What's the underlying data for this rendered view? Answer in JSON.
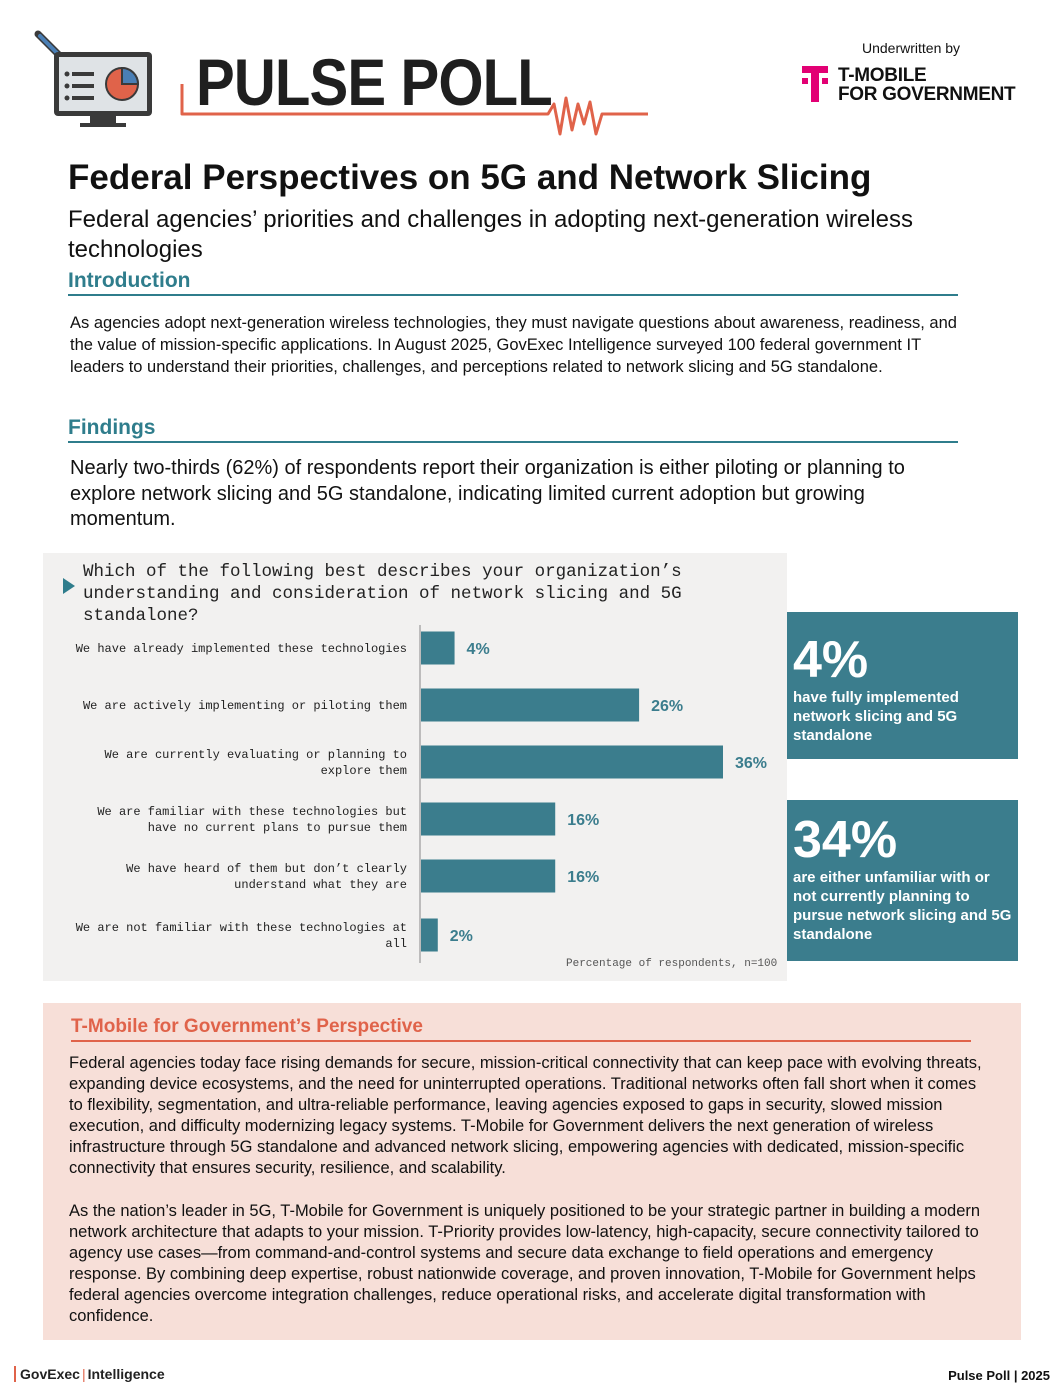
{
  "header": {
    "title": "PULSE POLL",
    "underwritten_label": "Underwritten by",
    "sponsor_line1": "T-MOBILE",
    "sponsor_line2": "FOR GOVERNMENT"
  },
  "main_title": "Federal Perspectives on 5G and Network Slicing",
  "subtitle": "Federal agencies’ priorities and challenges in adopting next-generation wireless technologies",
  "introduction": {
    "heading": "Introduction",
    "text": "As agencies adopt next-generation wireless technologies, they must navigate questions about awareness, readiness, and the value of mission-specific applications. In August 2025, GovExec Intelligence surveyed 100 federal government IT leaders to understand their priorities, challenges, and perceptions related to network slicing and 5G standalone."
  },
  "findings": {
    "heading": "Findings",
    "text": "Nearly two-thirds (62%) of respondents report their organization is either piloting or planning to explore network slicing and 5G standalone, indicating limited current adoption but growing momentum."
  },
  "chart_data": {
    "type": "bar",
    "orientation": "horizontal",
    "title": "Which of the following best describes your organization’s understanding and consideration of network slicing and 5G standalone?",
    "categories": [
      [
        "We have already implemented these technologies"
      ],
      [
        "We are actively implementing or piloting them"
      ],
      [
        "We are currently evaluating or planning to",
        "explore them"
      ],
      [
        "We are familiar with these technologies but",
        "have no current plans to pursue them"
      ],
      [
        "We have heard of them but don’t clearly",
        "understand what they are"
      ],
      [
        "We are not familiar with these technologies at",
        "all"
      ]
    ],
    "values": [
      4,
      26,
      36,
      16,
      16,
      2
    ],
    "value_labels": [
      "4%",
      "26%",
      "36%",
      "16%",
      "16%",
      "2%"
    ],
    "note": "Percentage of respondents, n=100",
    "bar_color": "#3b7d8d",
    "xlim": [
      0,
      36
    ],
    "grid": false,
    "legend": "none"
  },
  "stats": [
    {
      "number": "4%",
      "description": "have fully implemented network slicing and 5G standalone"
    },
    {
      "number": "34%",
      "description": "are either unfamiliar with or not currently planning to pursue network slicing and 5G standalone"
    }
  ],
  "perspective": {
    "heading": "T-Mobile for Government’s Perspective",
    "paragraph1": "Federal agencies today face rising demands for secure, mission-critical connectivity that can keep pace with evolving threats, expanding device ecosystems, and the need for uninterrupted operations. Traditional networks often fall short when it comes to flexibility, segmentation, and ultra-reliable performance, leaving agencies exposed to gaps in security, slowed mission execution, and difficulty modernizing legacy systems. T-Mobile for Government delivers the next generation of wireless infrastructure through 5G standalone and advanced network slicing, empowering agencies with dedicated, mission-specific connectivity that ensures security, resilience, and scalability.",
    "paragraph2": "As the nation’s leader in 5G, T-Mobile for Government is uniquely positioned to be your strategic partner in building a modern network architecture that adapts to your mission. T-Priority provides low-latency, high-capacity, secure connectivity tailored to agency use cases—from command-and-control systems and secure data exchange to field operations and emergency response. By combining deep expertise, robust nationwide coverage, and proven innovation, T-Mobile for Government helps federal agencies overcome integration challenges, reduce operational risks, and accelerate digital transformation with confidence."
  },
  "footer": {
    "brand_part1": "GovExec",
    "brand_part2": "Intelligence",
    "right": "Pulse Poll | 2025"
  },
  "colors": {
    "teal": "#2f7d8c",
    "bar": "#3b7d8d",
    "coral": "#e0634a",
    "magenta": "#e20074",
    "perspective_bg": "#f7dfd8",
    "chart_bg": "#f2f1f0"
  },
  "icons": [
    "computer-monitor-chart-icon",
    "pen-icon",
    "heartbeat-line-icon",
    "t-mobile-logo-icon"
  ]
}
